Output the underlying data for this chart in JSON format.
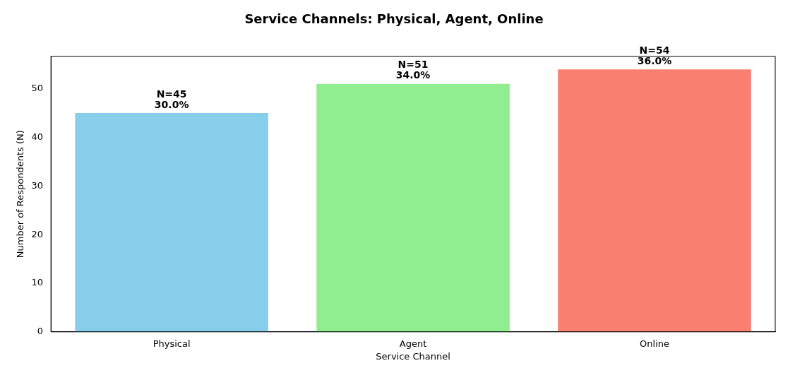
{
  "chart_data": {
    "type": "bar",
    "title": "Service Channels: Physical, Agent, Online",
    "xlabel": "Service Channel",
    "ylabel": "Number of Respondents (N)",
    "categories": [
      "Physical",
      "Agent",
      "Online"
    ],
    "values": [
      45,
      51,
      54
    ],
    "colors": [
      "#87ceeb",
      "#90ee90",
      "#fa8072"
    ],
    "value_labels": [
      "N=45\n30.0%",
      "N=51\n34.0%",
      "N=54\n36.0%"
    ],
    "ylim": [
      0,
      56.7
    ],
    "yticks": [
      0,
      10,
      20,
      30,
      40,
      50
    ],
    "grid": false,
    "legend": false
  }
}
